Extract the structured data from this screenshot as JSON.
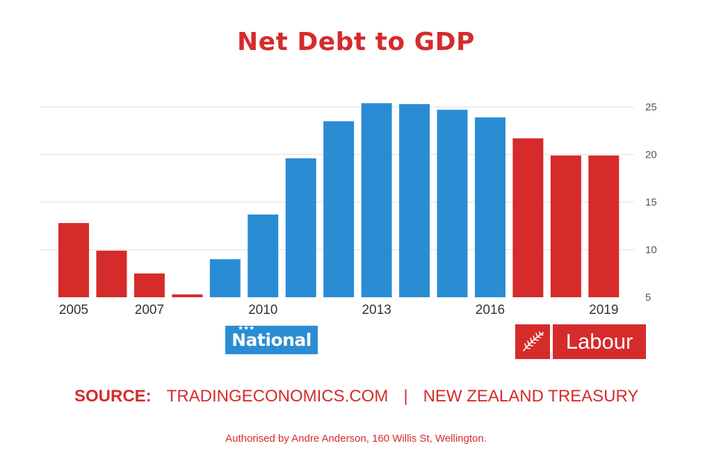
{
  "colors": {
    "red": "#d62b2b",
    "blue": "#2a8dd4",
    "grid": "#e8e8e8",
    "tick_text": "#555555",
    "axis_text": "#333333"
  },
  "title": "Net Debt to GDP",
  "chart_data": {
    "type": "bar",
    "title": "Net Debt to GDP",
    "xlabel": "",
    "ylabel": "",
    "ylim": [
      5,
      25
    ],
    "y_ticks": [
      25,
      20,
      15,
      10,
      5
    ],
    "y_axis_side": "right",
    "grid": true,
    "categories": [
      "2005",
      "2006",
      "2007",
      "2008",
      "2009",
      "2010",
      "2011",
      "2012",
      "2013",
      "2014",
      "2015",
      "2016",
      "2017",
      "2018",
      "2019"
    ],
    "x_tick_labels": [
      "2005",
      "",
      "2007",
      "",
      "",
      "2010",
      "",
      "",
      "2013",
      "",
      "",
      "2016",
      "",
      "",
      "2019"
    ],
    "values": [
      12.8,
      9.9,
      7.5,
      5.3,
      9.0,
      13.7,
      19.6,
      23.5,
      25.4,
      25.3,
      24.7,
      23.9,
      21.7,
      19.9,
      19.9
    ],
    "bar_colors": [
      "red",
      "red",
      "red",
      "red",
      "blue",
      "blue",
      "blue",
      "blue",
      "blue",
      "blue",
      "blue",
      "blue",
      "red",
      "red",
      "red"
    ]
  },
  "logos": {
    "national": "National",
    "labour": "Labour",
    "labour_icon": "fern-icon",
    "national_icon": "star-icon"
  },
  "source": {
    "label": "SOURCE:",
    "site": "TRADINGECONOMICS.COM",
    "separator": "|",
    "org": "NEW ZEALAND TREASURY"
  },
  "authorised": "Authorised by Andre Anderson, 160 Willis St, Wellington."
}
